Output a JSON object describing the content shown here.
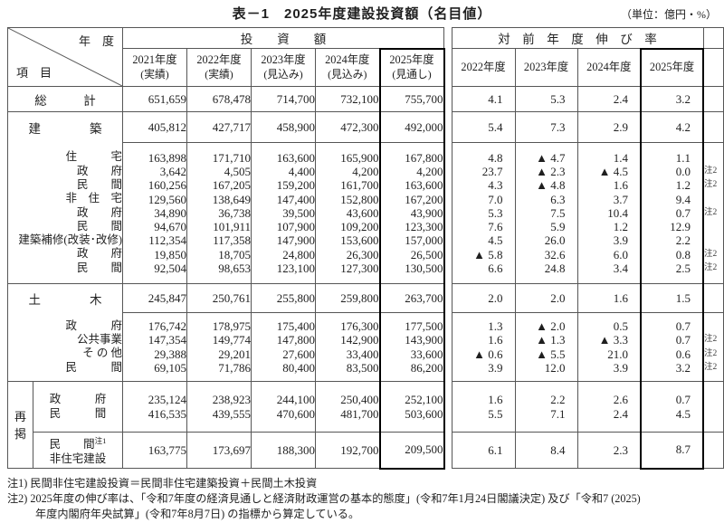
{
  "title": "表－1　2025年度建設投資額（名目値）",
  "unit_note": "（単位：億円・%）",
  "corner": {
    "top": "年　度",
    "bottom": "項　目"
  },
  "left_header": {
    "group": "投　　資　　額",
    "years": [
      {
        "y": "2021年度",
        "s": "(実績)"
      },
      {
        "y": "2022年度",
        "s": "(実績)"
      },
      {
        "y": "2023年度",
        "s": "(見込み)"
      },
      {
        "y": "2024年度",
        "s": "(見込み)"
      },
      {
        "y": "2025年度",
        "s": "(見通し)"
      }
    ]
  },
  "right_header": {
    "group": "対　前　年　度　伸　び　率",
    "years": [
      "2022年度",
      "2023年度",
      "2024年度",
      "2025年度"
    ]
  },
  "soukei": {
    "label": "総　　　計",
    "values": [
      "651,659",
      "678,478",
      "714,700",
      "732,100",
      "755,700"
    ],
    "rates": [
      "4.1",
      "5.3",
      "2.4",
      "3.2"
    ]
  },
  "kenchiku": {
    "label": "建　　　　築",
    "values": [
      "405,812",
      "427,717",
      "458,900",
      "472,300",
      "492,000"
    ],
    "rates": [
      "5.4",
      "7.3",
      "2.9",
      "4.2"
    ]
  },
  "kenchiku_sub": {
    "labels": [
      "住　　　宅",
      "政　　府",
      "民　　間",
      "非　住　宅",
      "政　　府",
      "民　　間",
      "建築補修(改装･改修)",
      "政　　府",
      "民　　間"
    ],
    "v2021": [
      "163,898",
      "3,642",
      "160,256",
      "129,560",
      "34,890",
      "94,670",
      "112,354",
      "19,850",
      "92,504"
    ],
    "v2022": [
      "171,710",
      "4,505",
      "167,205",
      "138,649",
      "36,738",
      "101,911",
      "117,358",
      "18,705",
      "98,653"
    ],
    "v2023": [
      "163,600",
      "4,400",
      "159,200",
      "147,400",
      "39,500",
      "107,900",
      "147,900",
      "24,800",
      "123,100"
    ],
    "v2024": [
      "165,900",
      "4,200",
      "161,700",
      "152,800",
      "43,600",
      "109,200",
      "153,600",
      "26,300",
      "127,300"
    ],
    "v2025": [
      "167,800",
      "4,200",
      "163,600",
      "167,200",
      "43,900",
      "123,300",
      "157,000",
      "26,500",
      "130,500"
    ],
    "r2022": [
      "4.8",
      "23.7",
      "4.3",
      "7.0",
      "5.3",
      "7.6",
      "4.5",
      "▲ 5.8",
      "6.6"
    ],
    "r2023": [
      "▲ 4.7",
      "▲ 2.3",
      "▲ 4.8",
      "6.3",
      "7.5",
      "5.9",
      "26.0",
      "32.6",
      "24.8"
    ],
    "r2024": [
      "1.4",
      "▲ 4.5",
      "1.6",
      "3.7",
      "10.4",
      "1.2",
      "3.9",
      "6.0",
      "3.4"
    ],
    "r2025": [
      "1.1",
      "0.0",
      "1.2",
      "9.4",
      "0.7",
      "12.9",
      "2.2",
      "0.8",
      "2.5"
    ],
    "notes": [
      "",
      "注2",
      "注2",
      "",
      "注2",
      "",
      "",
      "注2",
      "注2"
    ]
  },
  "doboku": {
    "label": "土　　　　木",
    "values": [
      "245,847",
      "250,761",
      "255,800",
      "259,800",
      "263,700"
    ],
    "rates": [
      "2.0",
      "2.0",
      "1.6",
      "1.5"
    ]
  },
  "doboku_sub": {
    "labels": [
      "政　　　府",
      "公共事業",
      "そ の 他",
      "民　　　間"
    ],
    "v2021": [
      "176,742",
      "147,354",
      "29,388",
      "69,105"
    ],
    "v2022": [
      "178,975",
      "149,774",
      "29,201",
      "71,786"
    ],
    "v2023": [
      "175,400",
      "147,800",
      "27,600",
      "80,400"
    ],
    "v2024": [
      "176,300",
      "142,900",
      "33,400",
      "83,500"
    ],
    "v2025": [
      "177,500",
      "143,900",
      "33,600",
      "86,200"
    ],
    "r2022": [
      "1.3",
      "1.6",
      "▲ 0.6",
      "3.9"
    ],
    "r2023": [
      "▲ 2.0",
      "▲ 1.3",
      "▲ 5.5",
      "12.0"
    ],
    "r2024": [
      "0.5",
      "▲ 3.3",
      "21.0",
      "3.9"
    ],
    "r2025": [
      "0.7",
      "0.7",
      "0.6",
      "3.2"
    ],
    "notes": [
      "",
      "注2",
      "注2",
      "注2"
    ]
  },
  "saikei": {
    "char1": "再",
    "char2": "掲"
  },
  "saikei_a": {
    "labels": [
      "政　　　府",
      "民　　　間"
    ],
    "v2021": [
      "235,124",
      "416,535"
    ],
    "v2022": [
      "238,923",
      "439,555"
    ],
    "v2023": [
      "244,100",
      "470,600"
    ],
    "v2024": [
      "250,400",
      "481,700"
    ],
    "v2025": [
      "252,100",
      "503,600"
    ],
    "r2022": [
      "1.6",
      "5.5"
    ],
    "r2023": [
      "2.2",
      "7.1"
    ],
    "r2024": [
      "2.6",
      "2.4"
    ],
    "r2025": [
      "0.7",
      "4.5"
    ]
  },
  "saikei_b": {
    "label1": "民　　間",
    "sup": "注1",
    "label2": "非住宅建設",
    "values": [
      "163,775",
      "173,697",
      "188,300",
      "192,700",
      "209,500"
    ],
    "rates": [
      "6.1",
      "8.4",
      "2.3",
      "8.7"
    ]
  },
  "footnotes": {
    "n1": "注1) 民間非住宅建設投資＝民間非住宅建築投資＋民間土木投資",
    "n2a": "注2) 2025年度の伸び率は、「令和7年度の経済見通しと経済財政運営の基本的態度」(令和7年1月24日閣議決定) 及び「令和7 (2025)",
    "n2b": "年度内閣府年央試算」(令和7年8月7日) の指標から算定している。"
  },
  "colors": {
    "border": "#565656",
    "bold_border": "#000000",
    "text": "#1f1f1f"
  }
}
